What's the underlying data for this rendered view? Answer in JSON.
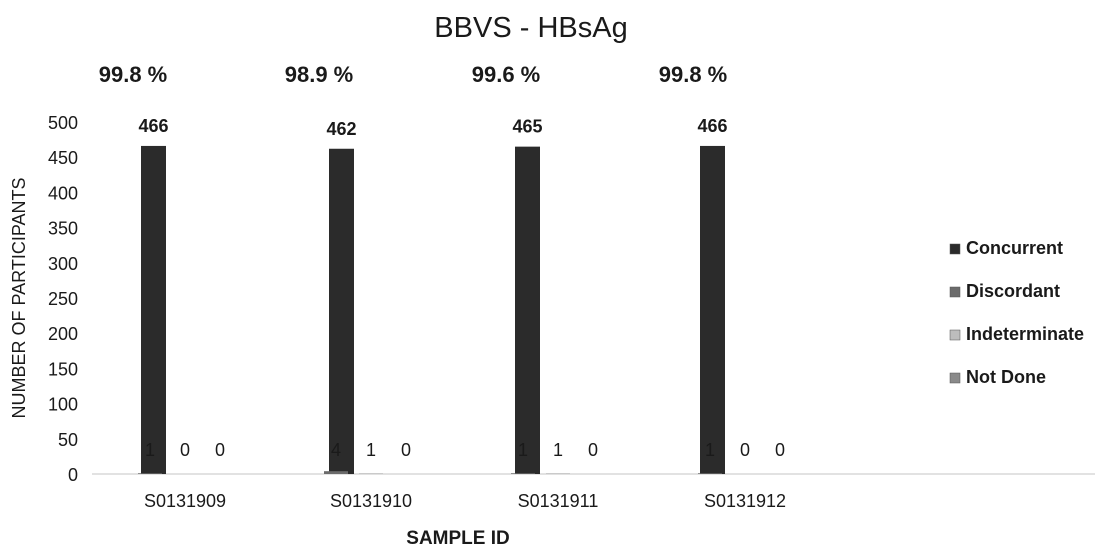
{
  "chart_data": {
    "type": "bar",
    "title": "BBVS - HBsAg",
    "xlabel": "SAMPLE ID",
    "ylabel": "NUMBER OF PARTICIPANTS",
    "ylim": [
      0,
      500
    ],
    "yticks": [
      0,
      50,
      100,
      150,
      200,
      250,
      300,
      350,
      400,
      450,
      500
    ],
    "categories": [
      "S0131909",
      "S0131910",
      "S0131911",
      "S0131912"
    ],
    "percentages": [
      "99.8 %",
      "98.9 %",
      "99.6 %",
      "99.8 %"
    ],
    "series": [
      {
        "name": "Concurrent",
        "values": [
          466,
          462,
          465,
          466
        ],
        "color": "#2b2b2b"
      },
      {
        "name": "Discordant",
        "values": [
          1,
          4,
          1,
          1
        ],
        "color": "#6b6b6b"
      },
      {
        "name": "Indeterminate",
        "values": [
          0,
          1,
          1,
          0
        ],
        "color": "#bdbdbd"
      },
      {
        "name": "Not Done",
        "values": [
          0,
          0,
          0,
          0
        ],
        "color": "#8a8a8a"
      }
    ],
    "grid": false,
    "legend_position": "right"
  }
}
